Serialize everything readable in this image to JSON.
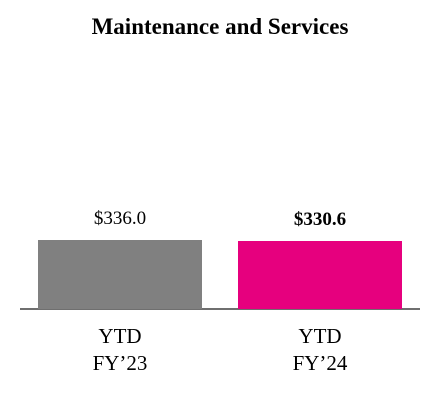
{
  "chart_data": {
    "type": "bar",
    "title": "Maintenance and Services",
    "categories": [
      "YTD\nFY’23",
      "YTD\nFY’24"
    ],
    "values": [
      336.0,
      330.6
    ],
    "value_labels": [
      "$336.0",
      "$330.6"
    ],
    "value_label_bold": [
      false,
      true
    ],
    "colors": [
      "#808080",
      "#e6007e"
    ]
  }
}
